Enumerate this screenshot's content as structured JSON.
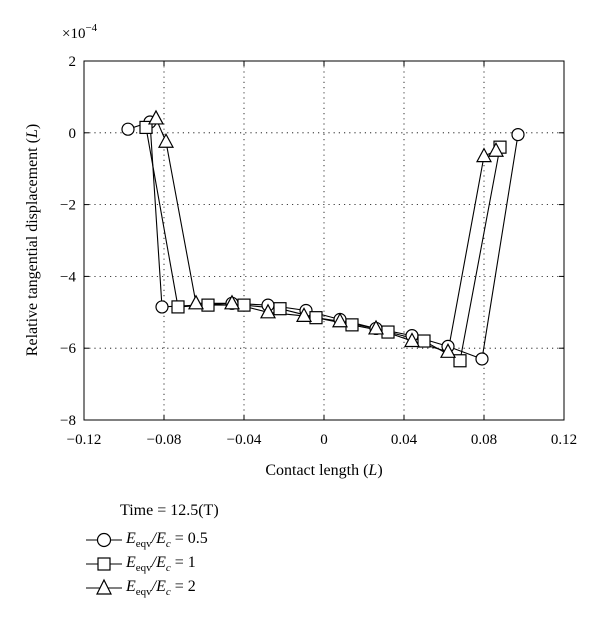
{
  "chart_data": {
    "type": "line",
    "title": "",
    "xlabel": "Contact length",
    "xlabel_unit": "L",
    "ylabel": "Relative tangential displacement",
    "ylabel_unit": "L",
    "y_multiplier": "×10",
    "y_multiplier_exp": "−4",
    "xlim": [
      -0.12,
      0.12
    ],
    "ylim": [
      -8,
      2
    ],
    "x_ticks": [
      -0.12,
      -0.08,
      -0.04,
      0,
      0.04,
      0.08,
      0.12
    ],
    "x_tick_labels": [
      "−0.12",
      "−0.08",
      "−0.04",
      "0",
      "0.04",
      "0.08",
      "0.12"
    ],
    "y_ticks": [
      -8,
      -6,
      -4,
      -2,
      0,
      2
    ],
    "y_tick_labels": [
      "−8",
      "−6",
      "−4",
      "−2",
      "0",
      "2"
    ],
    "grid": true,
    "legend_position": "bottom-left",
    "legend_title": "Time = 12.5(T)",
    "series": [
      {
        "name": "E_eqv/E_c = 0.5",
        "name_prefix": "E",
        "name_sub1": "eqv",
        "name_mid": "/E",
        "name_sub2": "c",
        "name_value": " = 0.5",
        "marker": "circle",
        "x": [
          -0.098,
          -0.087,
          -0.081,
          -0.046,
          -0.028,
          -0.009,
          0.008,
          0.026,
          0.044,
          0.062,
          0.079,
          0.097
        ],
        "y": [
          0.1,
          0.3,
          -4.85,
          -4.75,
          -4.8,
          -4.95,
          -5.2,
          -5.45,
          -5.65,
          -5.95,
          -6.3,
          -0.05
        ]
      },
      {
        "name": "E_eqv/E_c = 1",
        "name_prefix": "E",
        "name_sub1": "eqv",
        "name_mid": "/E",
        "name_sub2": "c",
        "name_value": " = 1",
        "marker": "square",
        "x": [
          -0.089,
          -0.073,
          -0.058,
          -0.04,
          -0.022,
          -0.004,
          0.014,
          0.032,
          0.05,
          0.068,
          0.088
        ],
        "y": [
          0.15,
          -4.85,
          -4.8,
          -4.8,
          -4.9,
          -5.15,
          -5.35,
          -5.55,
          -5.8,
          -6.35,
          -0.4
        ]
      },
      {
        "name": "E_eqv/E_c = 2",
        "name_prefix": "E",
        "name_sub1": "eqv",
        "name_mid": "/E",
        "name_sub2": "c",
        "name_value": " = 2",
        "marker": "triangle",
        "x": [
          -0.084,
          -0.079,
          -0.064,
          -0.046,
          -0.028,
          -0.01,
          0.008,
          0.026,
          0.044,
          0.062,
          0.08,
          0.086
        ],
        "y": [
          0.4,
          -0.25,
          -4.75,
          -4.75,
          -5.0,
          -5.1,
          -5.25,
          -5.45,
          -5.8,
          -6.1,
          -0.65,
          -0.5
        ]
      }
    ]
  }
}
